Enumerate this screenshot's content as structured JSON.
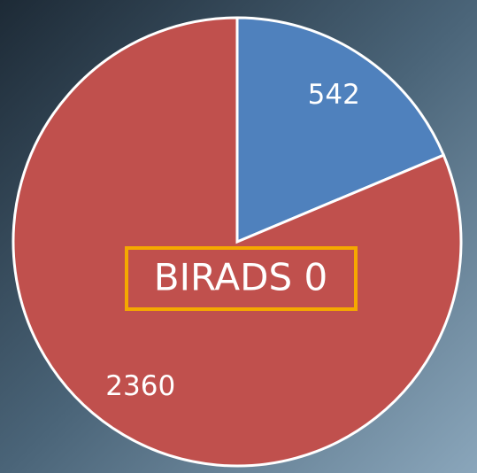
{
  "chart_data": {
    "type": "pie",
    "values": [
      542,
      2360
    ],
    "colors": [
      "#4f81bd",
      "#c0504d"
    ],
    "annotation": "BIRADS 0"
  }
}
